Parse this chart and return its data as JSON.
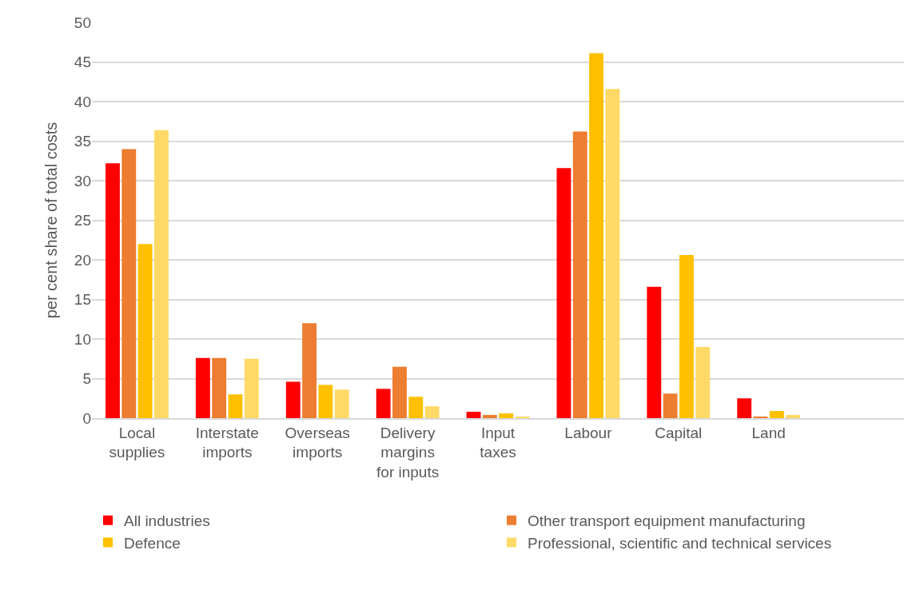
{
  "chart_data": {
    "type": "bar",
    "ylabel": "per cent share of total costs",
    "categories": [
      "Local supplies",
      "Interstate imports",
      "Overseas imports",
      "Delivery margins for inputs",
      "Input taxes",
      "Labour",
      "Capital",
      "Land",
      null
    ],
    "series": [
      {
        "name": "All industries",
        "color": "#ff0000",
        "values": [
          32.2,
          7.6,
          4.6,
          3.7,
          0.8,
          31.6,
          16.6,
          2.5,
          null
        ]
      },
      {
        "name": "Other transport equipment manufacturing",
        "color": "#ed7d31",
        "values": [
          34.0,
          7.6,
          12.0,
          6.5,
          0.4,
          36.2,
          3.1,
          0.2,
          null
        ]
      },
      {
        "name": "Defence",
        "color": "#ffc000",
        "values": [
          22.0,
          3.0,
          4.2,
          2.7,
          0.6,
          46.1,
          20.6,
          0.9,
          null
        ]
      },
      {
        "name": "Professional, scientific and technical services",
        "color": "#ffd966",
        "values": [
          36.4,
          7.5,
          3.6,
          1.5,
          0.2,
          41.6,
          9.0,
          0.4,
          null
        ]
      }
    ],
    "ylim": [
      0,
      50
    ],
    "yticks": [
      0,
      5,
      10,
      15,
      20,
      25,
      30,
      35,
      40,
      45,
      50
    ],
    "grid": "y",
    "legend": "bottom"
  }
}
